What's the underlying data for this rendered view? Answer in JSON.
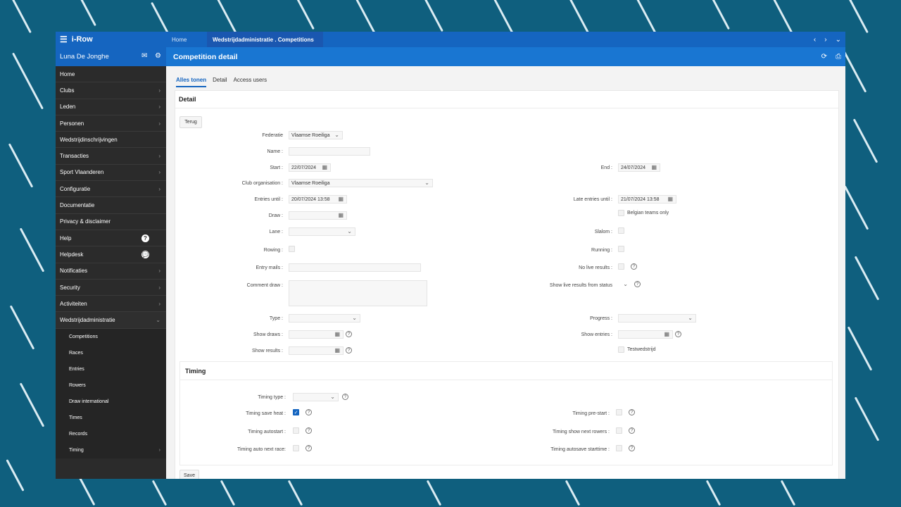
{
  "app": {
    "name": "i-Row"
  },
  "tabs": {
    "home": "Home",
    "active": "Wedstrijdadministratie . Competitions"
  },
  "user": {
    "name": "Luna De Jonghe"
  },
  "page": {
    "title": "Competition detail"
  },
  "sidebar": {
    "items": [
      {
        "label": "Home"
      },
      {
        "label": "Clubs"
      },
      {
        "label": "Leden"
      },
      {
        "label": "Personen"
      },
      {
        "label": "Wedstrijdinschrijvingen"
      },
      {
        "label": "Transacties"
      },
      {
        "label": "Sport Vlaanderen"
      },
      {
        "label": "Configuratie"
      },
      {
        "label": "Documentatie"
      },
      {
        "label": "Privacy & disclaimer"
      },
      {
        "label": "Help"
      },
      {
        "label": "Helpdesk"
      },
      {
        "label": "Notificaties"
      },
      {
        "label": "Security"
      },
      {
        "label": "Activiteiten"
      },
      {
        "label": "Wedstrijdadministratie"
      }
    ],
    "subitems": [
      {
        "label": "Competitions"
      },
      {
        "label": "Races"
      },
      {
        "label": "Entries"
      },
      {
        "label": "Rowers"
      },
      {
        "label": "Draw international"
      },
      {
        "label": "Times"
      },
      {
        "label": "Records"
      },
      {
        "label": "Timing"
      }
    ]
  },
  "content_tabs": [
    "Alles tonen",
    "Detail",
    "Access users"
  ],
  "detail": {
    "title": "Detail",
    "back_button": "Terug",
    "federatie_label": "Federatie",
    "federatie_value": "Vlaamse Roeiliga",
    "name_label": "Name :",
    "start_label": "Start :",
    "start_value": "22/07/2024",
    "end_label": "End :",
    "end_value": "24/07/2024",
    "club_label": "Club organisation :",
    "club_value": "Vlaamse Roeiliga",
    "entries_until_label": "Entries until :",
    "entries_until_value": "20/07/2024 13:58",
    "late_entries_label": "Late entries until :",
    "late_entries_value": "21/07/2024 13:58",
    "draw_label": "Draw :",
    "belgian_label": "Belgian teams only",
    "lane_label": "Lane :",
    "slalom_label": "Slalom :",
    "rowing_label": "Rowing :",
    "running_label": "Running :",
    "entry_mails_label": "Entry mails :",
    "no_live_label": "No live results :",
    "comment_label": "Comment draw :",
    "show_live_label": "Show live results from status",
    "type_label": "Type :",
    "progress_label": "Progress :",
    "show_draws_label": "Show draws :",
    "show_entries_label": "Show entries :",
    "show_results_label": "Show results :",
    "testwedstrijd_label": "Testwedstrijd"
  },
  "timing": {
    "title": "Timing",
    "timing_type_label": "Timing type :",
    "save_heat_label": "Timing save heat :",
    "pre_start_label": "Timing pre-start :",
    "autostart_label": "Timing autostart :",
    "show_next_label": "Timing show next rowers :",
    "auto_next_label": "Timing auto next race:",
    "autosave_label": "Timing autosave starttime :"
  },
  "save_button": "Save"
}
